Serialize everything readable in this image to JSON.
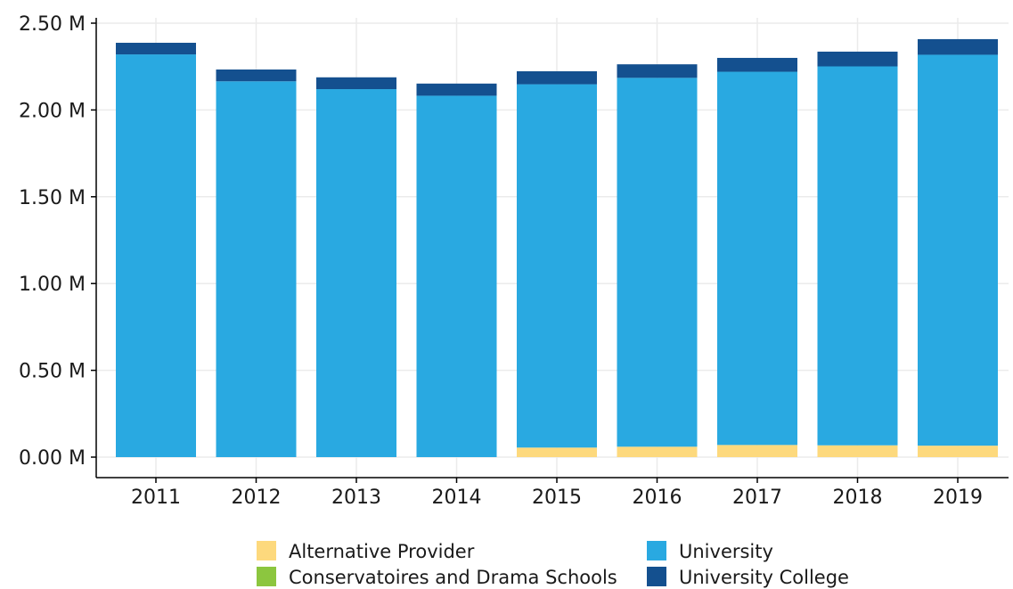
{
  "chart_data": {
    "type": "bar",
    "stacked": true,
    "categories": [
      "2011",
      "2012",
      "2013",
      "2014",
      "2015",
      "2016",
      "2017",
      "2018",
      "2019"
    ],
    "series": [
      {
        "name": "Alternative Provider",
        "color": "#fdd97d",
        "values": [
          0,
          0,
          0,
          0,
          0.055,
          0.06,
          0.07,
          0.068,
          0.066
        ]
      },
      {
        "name": "Conservatoires and Drama Schools",
        "color": "#8cc63f",
        "values": [
          0,
          0,
          0,
          0,
          0,
          0,
          0,
          0,
          0
        ]
      },
      {
        "name": "University",
        "color": "#29a9e1",
        "values": [
          2.32,
          2.165,
          2.12,
          2.082,
          2.093,
          2.125,
          2.15,
          2.183,
          2.252
        ]
      },
      {
        "name": "University College",
        "color": "#14508f",
        "values": [
          0.067,
          0.068,
          0.068,
          0.07,
          0.075,
          0.078,
          0.08,
          0.085,
          0.09
        ]
      }
    ],
    "ylim": [
      0,
      2.5
    ],
    "yticks": [
      0,
      0.5,
      1.0,
      1.5,
      2.0,
      2.5
    ],
    "ytick_labels": [
      "0.00 M",
      "0.50 M",
      "1.00 M",
      "1.50 M",
      "2.00 M",
      "2.50 M"
    ],
    "xlabel": "",
    "ylabel": "",
    "grid": true,
    "legend_position": "bottom"
  }
}
